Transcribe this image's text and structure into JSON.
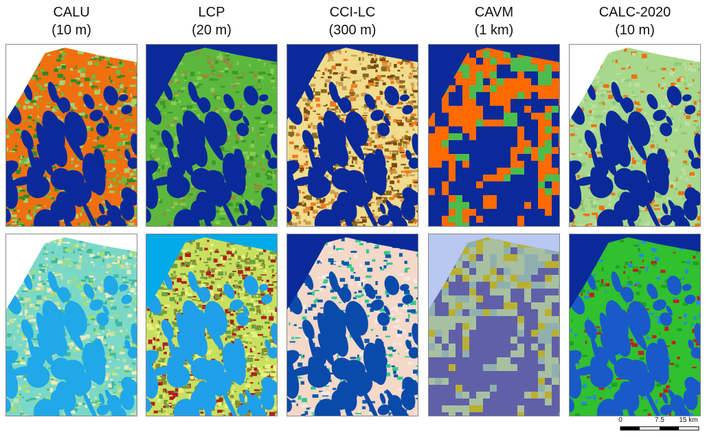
{
  "columns": [
    {
      "name": "CALU",
      "resolution": "(10 m)"
    },
    {
      "name": "LCP",
      "resolution": "(20 m)"
    },
    {
      "name": "CCI-LC",
      "resolution": "(300 m)"
    },
    {
      "name": "CAVM",
      "resolution": "(1 km)"
    },
    {
      "name": "CALC-2020",
      "resolution": "(10 m)"
    }
  ],
  "scale_bar": {
    "labels": [
      "0",
      "7.5",
      "15 km"
    ]
  }
}
